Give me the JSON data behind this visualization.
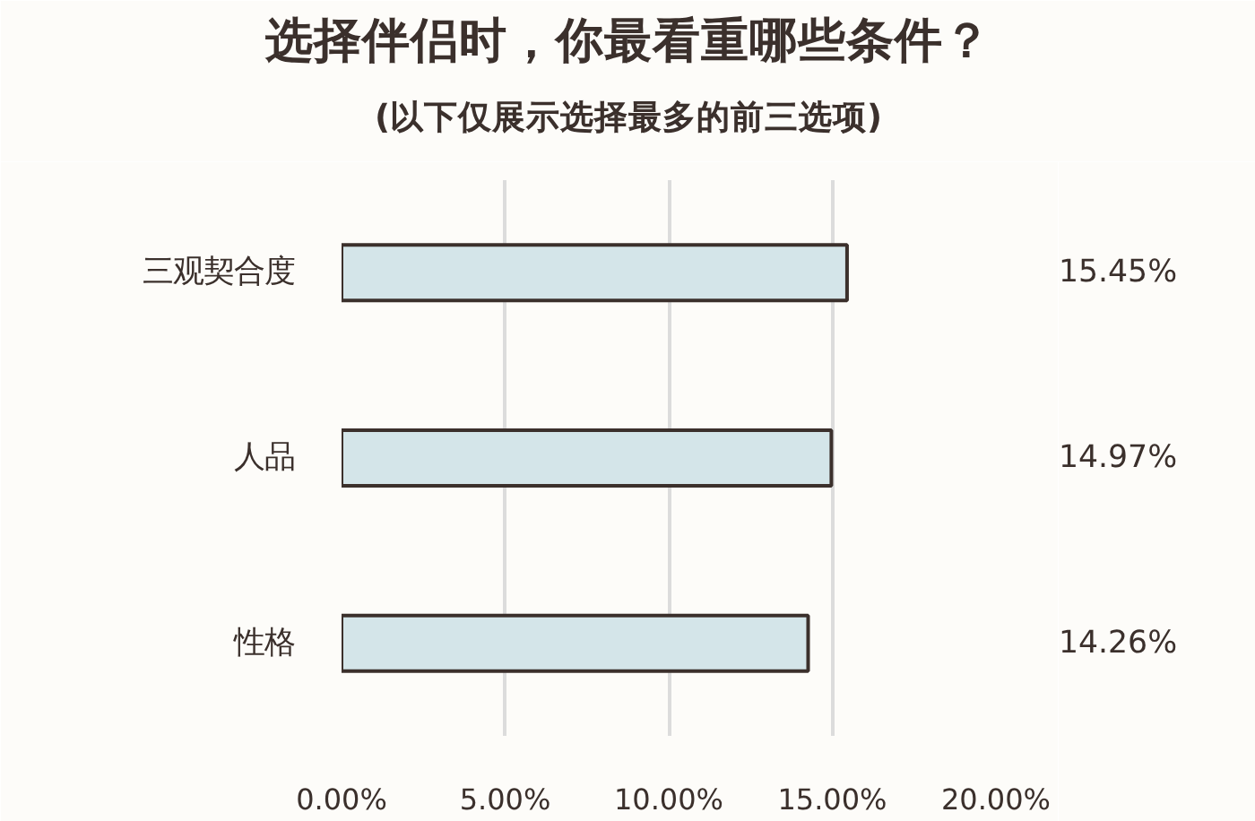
{
  "chart_data": {
    "type": "bar",
    "orientation": "horizontal",
    "title": "选择伴侣时，你最看重哪些条件？",
    "subtitle": "(以下仅展示选择最多的前三选项)",
    "categories": [
      "三观契合度",
      "人品",
      "性格"
    ],
    "values": [
      15.45,
      14.97,
      14.26
    ],
    "color": "#d4e5e9",
    "value_labels": [
      "15.45%",
      "14.97%",
      "14.26%"
    ],
    "xlim": [
      0,
      20
    ],
    "xticks": [
      {
        "value": 0,
        "label": "0.00%"
      },
      {
        "value": 5,
        "label": "5.00%"
      },
      {
        "value": 10,
        "label": "10.00%"
      },
      {
        "value": 15,
        "label": "15.00%"
      },
      {
        "value": 20,
        "label": "20.00%"
      }
    ],
    "grid": "x"
  }
}
